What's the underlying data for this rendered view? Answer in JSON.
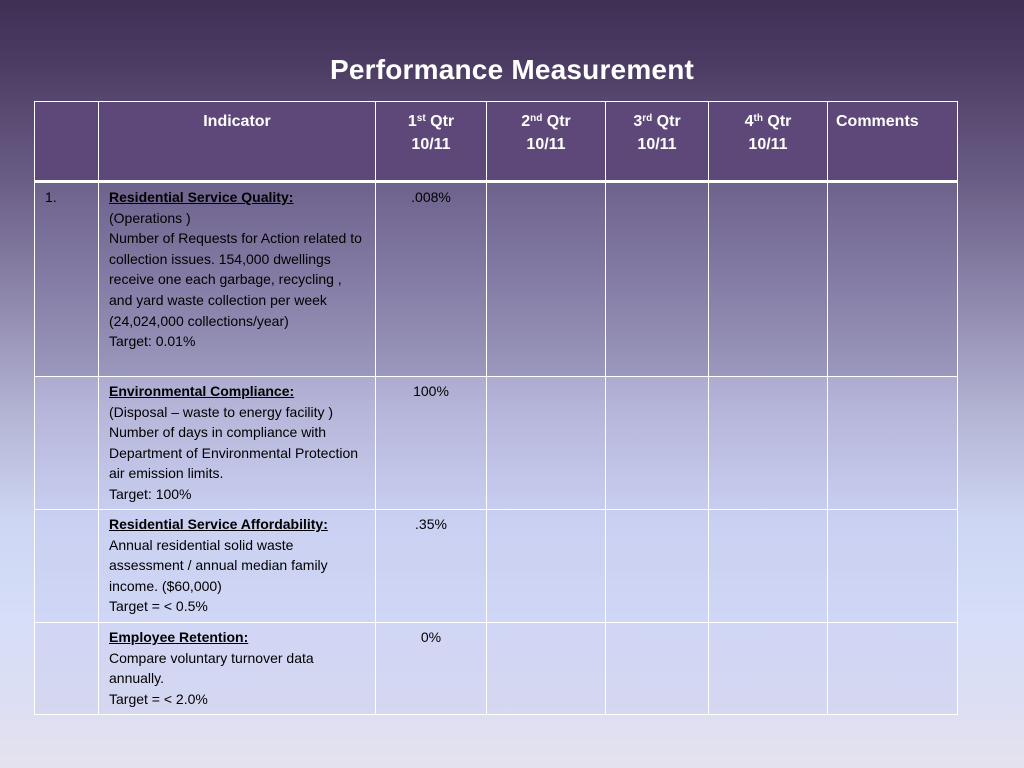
{
  "title": "Performance Measurement",
  "header": {
    "indicator": "Indicator",
    "quarters": [
      {
        "num": "1",
        "sup": "st",
        "label": "Qtr",
        "period": "10/11"
      },
      {
        "num": "2",
        "sup": "nd",
        "label": "Qtr",
        "period": "10/11"
      },
      {
        "num": "3",
        "sup": "rd",
        "label": "Qtr",
        "period": "10/11"
      },
      {
        "num": "4",
        "sup": "th",
        "label": "Qtr",
        "period": "10/11"
      }
    ],
    "comments": "Comments"
  },
  "rows": [
    {
      "number": "1.",
      "title": "Residential Service Quality:",
      "lines": [
        "(Operations )",
        "Number of Requests for Action related to collection issues. 154,000 dwellings receive one each garbage, recycling , and yard waste collection per week (24,024,000 collections/year)",
        "Target: 0.01%"
      ],
      "q1": ".008%",
      "q2": "",
      "q3": "",
      "q4": "",
      "comments": ""
    },
    {
      "number": "",
      "title": "Environmental Compliance:",
      "lines": [
        "(Disposal – waste to energy facility )",
        "Number of days in compliance with Department of Environmental Protection air emission limits.",
        "Target:  100%"
      ],
      "q1": "100%",
      "q2": "",
      "q3": "",
      "q4": "",
      "comments": ""
    },
    {
      "number": "",
      "title": "Residential Service Affordability:",
      "lines": [
        "Annual residential solid waste assessment / annual median family income. ($60,000)",
        "Target = < 0.5%"
      ],
      "q1": ".35%",
      "q2": "",
      "q3": "",
      "q4": "",
      "comments": ""
    },
    {
      "number": "",
      "title": "Employee Retention:",
      "lines": [
        "Compare voluntary turnover data annually.",
        "Target = < 2.0%"
      ],
      "q1": "0%",
      "q2": "",
      "q3": "",
      "q4": "",
      "comments": ""
    }
  ]
}
